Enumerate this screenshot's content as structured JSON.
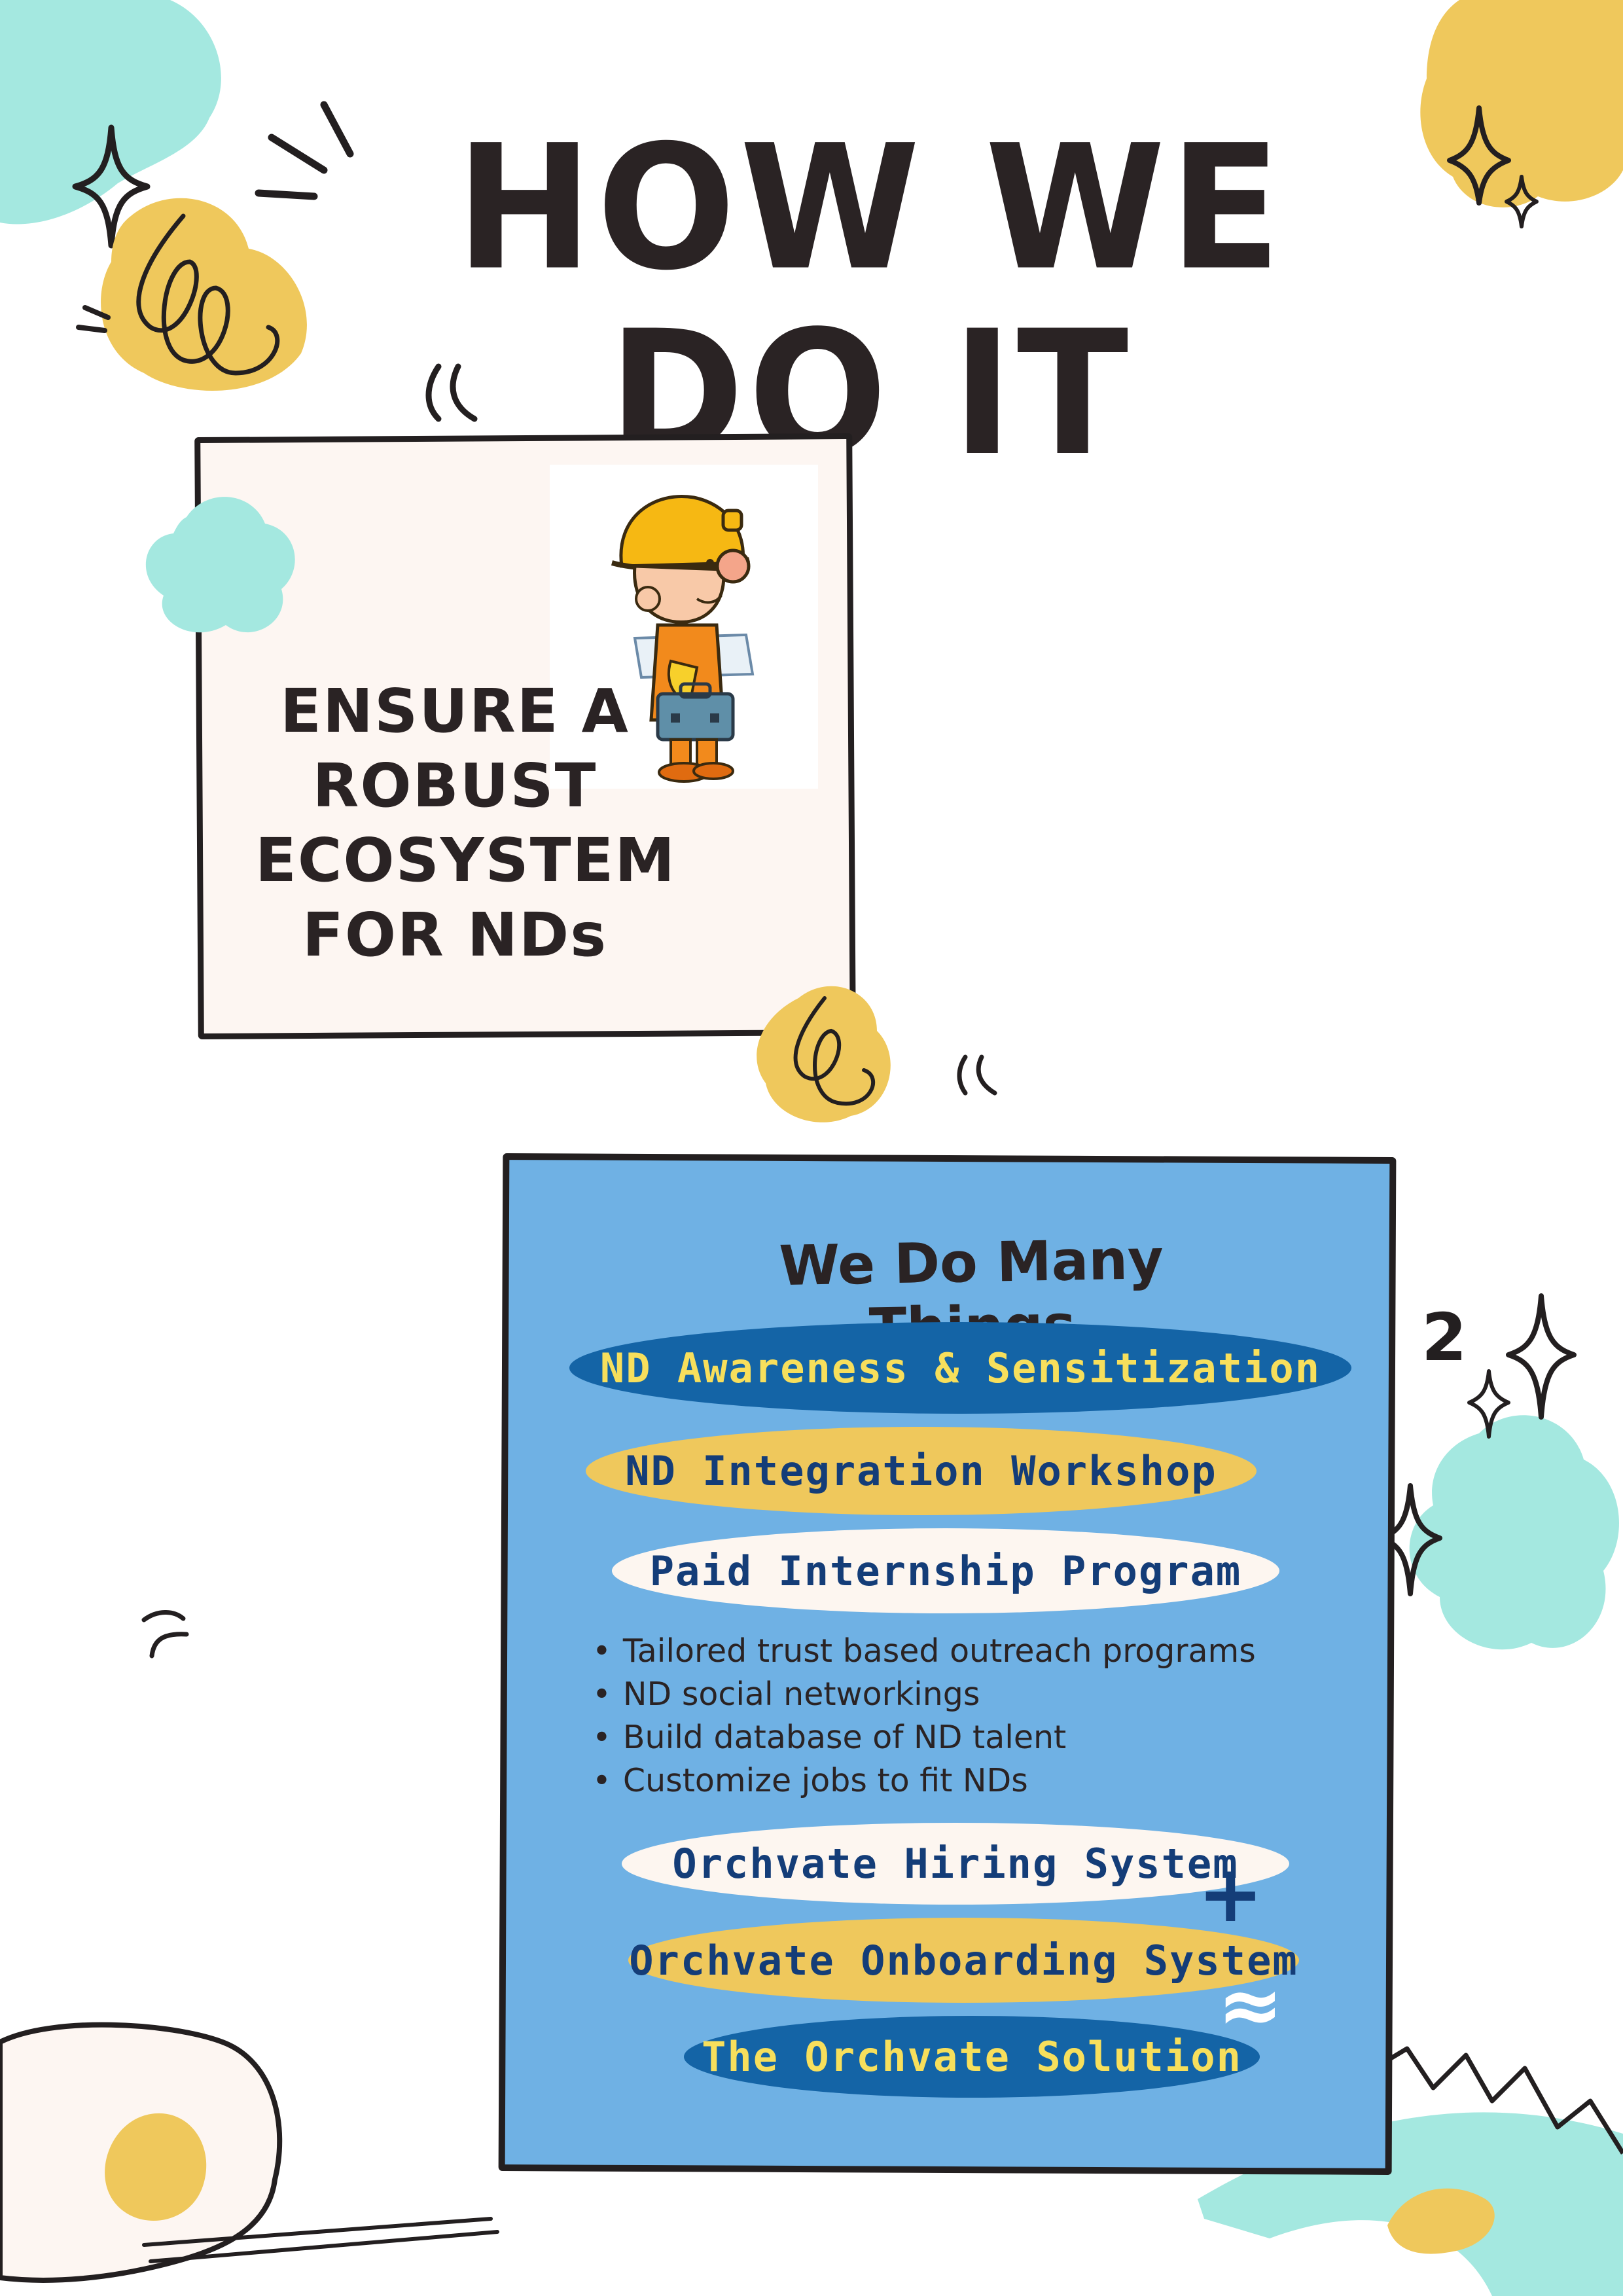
{
  "page": {
    "title": "HOW WE DO IT"
  },
  "card1": {
    "heading_lines": [
      "ENSURE A",
      "ROBUST",
      "ECOSYSTEM",
      "FOR NDs"
    ],
    "illustration": "construction-worker-with-toolbox"
  },
  "card2": {
    "heading": "We Do Many Things",
    "pills_top": [
      {
        "label": "ND Awareness & Sensitization",
        "style": "dark"
      },
      {
        "label": "ND Integration Workshop",
        "style": "yellow"
      },
      {
        "label": "Paid Internship Program",
        "style": "cream"
      }
    ],
    "bullets": [
      "Tailored trust based outreach programs",
      "ND social networkings",
      "Build database of ND talent",
      "Customize jobs to fit NDs"
    ],
    "pills_bottom": [
      {
        "label": "Orchvate Hiring System",
        "style": "cream"
      },
      {
        "label": "Orchvate Onboarding System",
        "style": "yellow"
      },
      {
        "label": "The Orchvate Solution",
        "style": "dark"
      }
    ],
    "plus_symbol": "+",
    "approx_symbol": "≈"
  },
  "decor": {
    "number": "2"
  },
  "colors": {
    "ink": "#231f20",
    "card_blue": "#6fb1e4",
    "navy": "#1464a6",
    "yellow": "#efc85c",
    "mint": "#a4e8e0",
    "cream": "#fdf6f2"
  }
}
